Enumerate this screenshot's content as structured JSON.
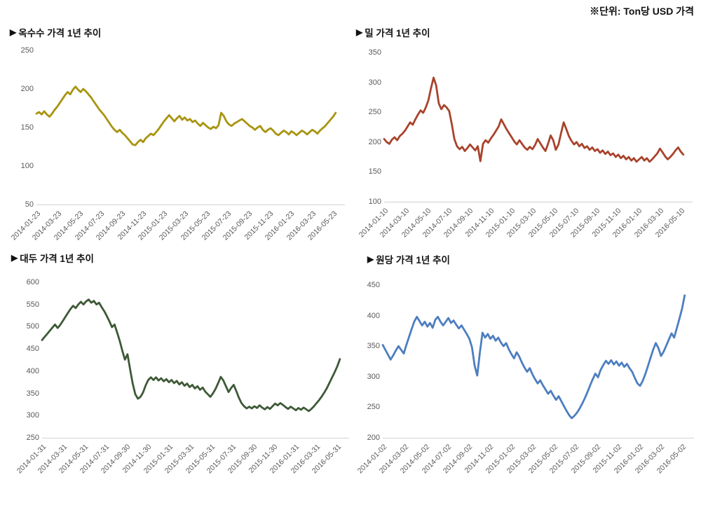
{
  "unit_note": "※단위: Ton당 USD 가격",
  "title_marker": "▶",
  "chart_data": [
    {
      "type": "line",
      "id": "corn",
      "title": "옥수수 가격 1년 추이",
      "color": "#A8940F",
      "ylim": [
        50,
        250
      ],
      "yticks": [
        250,
        200,
        150,
        100,
        50
      ],
      "grid": false,
      "legend": "none",
      "xticks": [
        "2014-01-23",
        "2014-03-23",
        "2014-05-23",
        "2014-07-23",
        "2014-09-23",
        "2014-11-23",
        "2015-01-23",
        "2015-03-23",
        "2015-05-23",
        "2015-07-23",
        "2015-09-23",
        "2015-11-23",
        "2016-01-23",
        "2016-03-23",
        "2016-05-23"
      ],
      "values": [
        168,
        170,
        167,
        171,
        167,
        164,
        168,
        173,
        177,
        182,
        187,
        192,
        196,
        193,
        199,
        203,
        199,
        196,
        200,
        197,
        193,
        189,
        184,
        179,
        174,
        170,
        166,
        161,
        156,
        151,
        147,
        144,
        147,
        143,
        140,
        136,
        132,
        128,
        127,
        131,
        134,
        131,
        136,
        139,
        142,
        140,
        144,
        148,
        153,
        158,
        162,
        166,
        162,
        158,
        162,
        165,
        160,
        163,
        159,
        161,
        157,
        159,
        155,
        152,
        156,
        153,
        150,
        148,
        151,
        149,
        153,
        169,
        165,
        158,
        154,
        152,
        155,
        157,
        159,
        161,
        158,
        155,
        152,
        150,
        147,
        150,
        152,
        147,
        144,
        147,
        149,
        146,
        142,
        140,
        143,
        146,
        144,
        141,
        145,
        143,
        140,
        143,
        146,
        144,
        141,
        144,
        147,
        145,
        142,
        146,
        149,
        152,
        156,
        160,
        164,
        169
      ]
    },
    {
      "type": "line",
      "id": "wheat",
      "title": "밀 가격 1년 추이",
      "color": "#A8432C",
      "ylim": [
        100,
        350
      ],
      "yticks": [
        350,
        300,
        250,
        200,
        150,
        100
      ],
      "grid": false,
      "legend": "none",
      "xticks": [
        "2014-01-10",
        "2014-03-10",
        "2014-05-10",
        "2014-07-10",
        "2014-09-10",
        "2014-11-10",
        "2015-01-10",
        "2015-03-10",
        "2015-05-10",
        "2015-07-10",
        "2015-09-10",
        "2015-11-10",
        "2016-01-10",
        "2016-03-10",
        "2016-05-10"
      ],
      "values": [
        205,
        200,
        197,
        204,
        208,
        203,
        210,
        214,
        219,
        226,
        233,
        229,
        238,
        246,
        253,
        249,
        258,
        270,
        290,
        308,
        295,
        265,
        255,
        262,
        258,
        252,
        230,
        205,
        193,
        188,
        192,
        185,
        190,
        196,
        191,
        186,
        193,
        168,
        197,
        203,
        199,
        206,
        212,
        219,
        226,
        238,
        230,
        222,
        215,
        208,
        201,
        196,
        203,
        197,
        191,
        187,
        192,
        188,
        195,
        205,
        198,
        191,
        185,
        197,
        211,
        203,
        187,
        196,
        215,
        233,
        222,
        210,
        202,
        196,
        200,
        193,
        197,
        190,
        193,
        187,
        191,
        185,
        188,
        182,
        186,
        180,
        184,
        178,
        181,
        175,
        179,
        173,
        177,
        171,
        175,
        169,
        173,
        167,
        171,
        175,
        169,
        173,
        167,
        171,
        176,
        181,
        189,
        183,
        176,
        171,
        175,
        180,
        186,
        191,
        184,
        179
      ]
    },
    {
      "type": "line",
      "id": "soybean",
      "title": "대두 가격 1년 추이",
      "color": "#3D5936",
      "ylim": [
        250,
        600
      ],
      "yticks": [
        600,
        550,
        500,
        450,
        400,
        350,
        300,
        250
      ],
      "grid": false,
      "legend": "none",
      "xticks": [
        "2014-01-31",
        "2014-03-31",
        "2014-05-31",
        "2014-07-31",
        "2014-09-30",
        "2014-11-30",
        "2015-01-31",
        "2015-03-31",
        "2015-05-31",
        "2015-07-31",
        "2015-09-30",
        "2015-11-30",
        "2016-01-31",
        "2016-03-31",
        "2016-05-31"
      ],
      "values": [
        470,
        477,
        484,
        491,
        498,
        505,
        497,
        504,
        513,
        522,
        531,
        540,
        547,
        542,
        550,
        556,
        550,
        557,
        561,
        554,
        558,
        550,
        554,
        544,
        535,
        524,
        512,
        499,
        505,
        487,
        468,
        446,
        426,
        438,
        404,
        372,
        348,
        338,
        342,
        352,
        368,
        380,
        386,
        380,
        386,
        379,
        384,
        377,
        382,
        375,
        380,
        373,
        378,
        370,
        375,
        367,
        372,
        364,
        369,
        361,
        366,
        358,
        363,
        354,
        348,
        342,
        350,
        360,
        373,
        387,
        379,
        366,
        353,
        362,
        369,
        355,
        340,
        328,
        321,
        316,
        320,
        316,
        321,
        317,
        323,
        318,
        314,
        319,
        315,
        321,
        327,
        323,
        328,
        324,
        319,
        315,
        320,
        316,
        312,
        317,
        313,
        318,
        314,
        310,
        315,
        321,
        328,
        335,
        343,
        352,
        362,
        374,
        386,
        398,
        411,
        427
      ]
    },
    {
      "type": "line",
      "id": "sugar",
      "title": "원당 가격 1년 추이",
      "color": "#4D7EBF",
      "ylim": [
        200,
        450
      ],
      "yticks": [
        450,
        400,
        350,
        300,
        250,
        200
      ],
      "grid": false,
      "legend": "none",
      "xticks": [
        "2014-01-02",
        "2014-03-02",
        "2014-05-02",
        "2014-07-02",
        "2014-09-02",
        "2014-11-02",
        "2015-01-02",
        "2015-03-02",
        "2015-05-02",
        "2015-07-02",
        "2015-09-02",
        "2015-11-02",
        "2016-01-02",
        "2016-03-02",
        "2016-05-02"
      ],
      "values": [
        352,
        344,
        336,
        328,
        335,
        343,
        350,
        344,
        338,
        352,
        365,
        378,
        390,
        398,
        391,
        384,
        390,
        382,
        388,
        380,
        393,
        398,
        390,
        384,
        390,
        396,
        388,
        392,
        385,
        379,
        384,
        377,
        370,
        362,
        348,
        318,
        302,
        340,
        372,
        364,
        370,
        362,
        367,
        359,
        364,
        356,
        350,
        355,
        345,
        337,
        330,
        340,
        333,
        323,
        315,
        308,
        314,
        304,
        296,
        289,
        294,
        286,
        279,
        272,
        277,
        269,
        262,
        268,
        260,
        252,
        244,
        237,
        232,
        236,
        241,
        248,
        256,
        265,
        275,
        286,
        296,
        305,
        299,
        311,
        319,
        326,
        321,
        327,
        320,
        325,
        318,
        323,
        316,
        321,
        314,
        308,
        298,
        289,
        285,
        293,
        304,
        317,
        331,
        344,
        355,
        347,
        334,
        341,
        351,
        361,
        371,
        364,
        379,
        395,
        411,
        433
      ]
    }
  ]
}
